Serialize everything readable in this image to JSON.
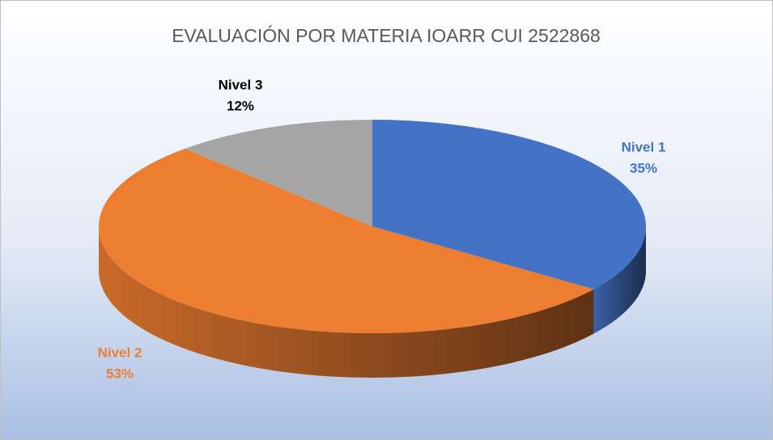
{
  "chart_data": {
    "type": "pie",
    "title": "EVALUACIÓN POR MATERIA  IOARR CUI 2522868",
    "categories": [
      "Nivel 1",
      "Nivel 2",
      "Nivel 3"
    ],
    "values": [
      35,
      53,
      12
    ],
    "value_labels": [
      "35%",
      "53%",
      "12%"
    ],
    "colors": [
      "#4472c4",
      "#ed7d31",
      "#a5a5a5"
    ],
    "label_colors": [
      "#4472c4",
      "#ed7d31",
      "#000000"
    ]
  }
}
